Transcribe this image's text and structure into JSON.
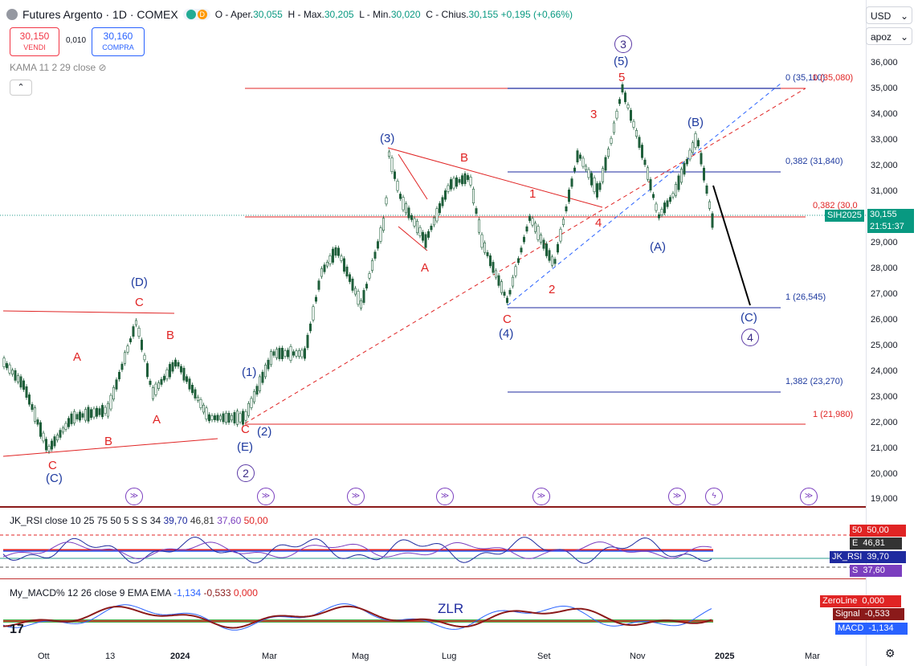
{
  "header": {
    "title": "Futures Argento · 1D · COMEX",
    "ohlc": {
      "o_label": "O",
      "o": "Aper.",
      "o_val": "30,055",
      "h_label": "H",
      "h": "Max.",
      "h_val": "30,205",
      "l_label": "L",
      "l": "Min.",
      "l_val": "30,020",
      "c_label": "C",
      "c": "Chius.",
      "c_val": "30,155",
      "chg": "+0,195 (+0,66%)"
    },
    "badge_d": "D"
  },
  "trade": {
    "sell_price": "30,150",
    "sell_label": "VENDI",
    "spread": "0,010",
    "buy_price": "30,160",
    "buy_label": "COMPRA"
  },
  "indicator_main": "KAMA 11 2 29 close",
  "scale": {
    "currency": "USD",
    "mode": "apoz",
    "ticks": [
      "36,000",
      "35,000",
      "34,000",
      "33,000",
      "32,000",
      "31,000",
      "29,000",
      "28,000",
      "27,000",
      "26,000",
      "25,000",
      "24,000",
      "23,000",
      "22,000",
      "21,000",
      "20,000",
      "19,000"
    ],
    "symbol": "SIH2025",
    "last_price": "30,155",
    "countdown": "21:51:37"
  },
  "fib_labels": {
    "f0": "0 (35,110)",
    "f0b": "0 (35,080)",
    "f382a": "0,382 (31,840)",
    "f382b": "0,382 (30,0",
    "f1a": "1 (26,545)",
    "f1382": "1,382 (23,270)",
    "f1b": "1 (21,980)"
  },
  "waves": {
    "w3c": "3",
    "w5p": "(5)",
    "w5": "5",
    "w3": "3",
    "wBp": "(B)",
    "w3p": "(3)",
    "wBr": "B",
    "w1": "1",
    "w4": "4",
    "wAp": "(A)",
    "wAr": "A",
    "w2": "2",
    "wCr": "C",
    "w4p": "(4)",
    "wCp": "(C)",
    "w4c": "4",
    "wDp": "(D)",
    "wCr2": "C",
    "wAr2": "A",
    "wBr2": "B",
    "wBr3": "B",
    "wAr3": "A",
    "wCr3": "C",
    "wCp2": "(C)",
    "w1p": "(1)",
    "w2p": "(2)",
    "wCr4": "C",
    "wEp": "(E)",
    "w2c": "2"
  },
  "rsi": {
    "label": "JK_RSI close 10 25 75 50 5 S S 34",
    "v1": "39,70",
    "v2": "46,81",
    "v3": "37,60",
    "v4": "50,00",
    "tags": [
      {
        "k": "50",
        "v": "50,00",
        "c": "#e02424"
      },
      {
        "k": "E",
        "v": "46,81",
        "c": "#333333"
      },
      {
        "k": "JK_RSI",
        "v": "39,70",
        "c": "#1e2a9f"
      },
      {
        "k": "S",
        "v": "37,60",
        "c": "#7b3fbf"
      }
    ]
  },
  "macd": {
    "label": "My_MACD% 12 26 close 9 EMA EMA",
    "v1": "-1,134",
    "v2": "-0,533",
    "v3": "0,000",
    "zlr": "ZLR",
    "tags": [
      {
        "k": "ZeroLine",
        "v": "0,000",
        "c": "#e02424"
      },
      {
        "k": "Signal",
        "v": "-0,533",
        "c": "#8b1a1a"
      },
      {
        "k": "MACD",
        "v": "-1,134",
        "c": "#2962ff"
      }
    ]
  },
  "xaxis": [
    "Ott",
    "13",
    "2024",
    "Mar",
    "Mag",
    "Lug",
    "Set",
    "Nov",
    "2025",
    "Mar"
  ],
  "colors": {
    "up": "#089981",
    "down": "#f23645",
    "candle": "#1f5e3a",
    "red_line": "#e02424",
    "blue_line": "#1e2a9f"
  }
}
